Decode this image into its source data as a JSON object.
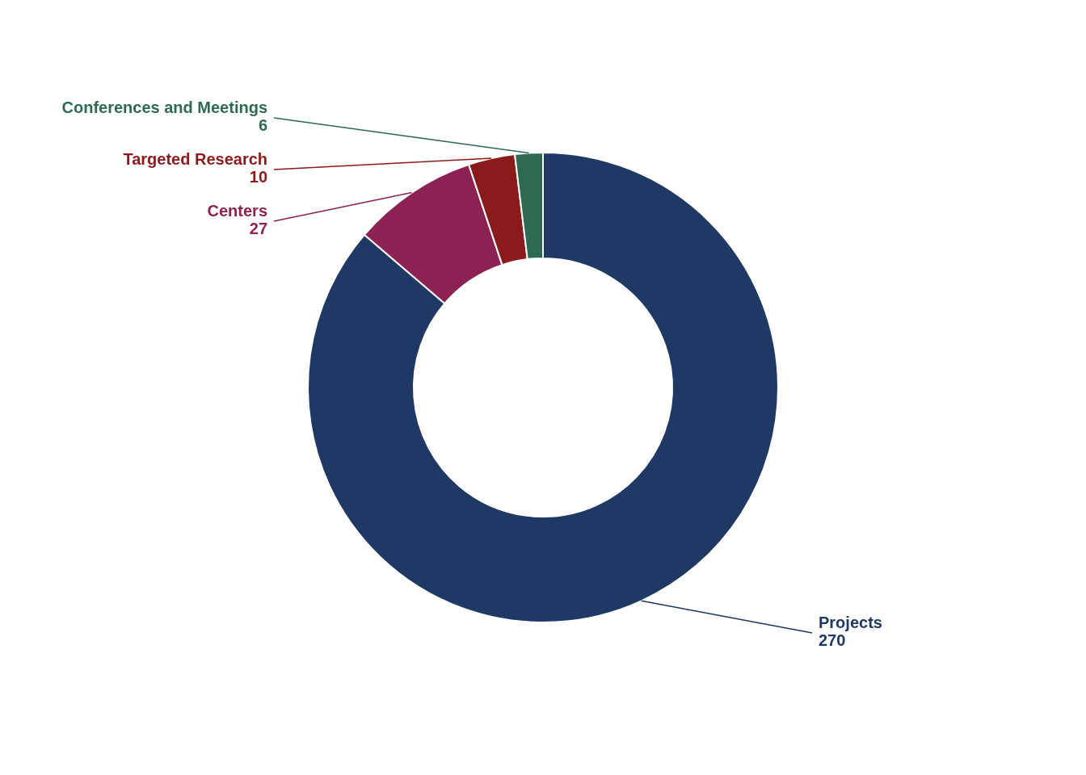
{
  "chart_data": {
    "type": "doughnut",
    "categories": [
      "Projects",
      "Centers",
      "Targeted Research",
      "Conferences and Meetings"
    ],
    "values": [
      270,
      27,
      10,
      6
    ],
    "colors": [
      "#1f3864",
      "#8b2252",
      "#8b1a1a",
      "#2d6a4f"
    ],
    "data_labels": true
  }
}
